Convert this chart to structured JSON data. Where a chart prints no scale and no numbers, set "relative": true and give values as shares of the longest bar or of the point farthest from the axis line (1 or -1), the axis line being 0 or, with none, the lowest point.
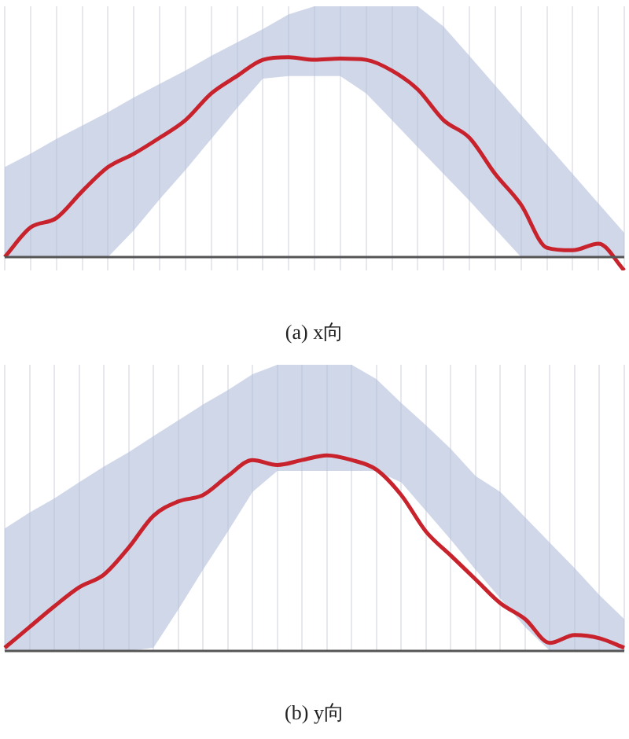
{
  "chart_data": [
    {
      "type": "line",
      "title": "(a) x向",
      "relative": true,
      "grid": "x",
      "legend": false,
      "marker": "none",
      "line_style": "solid",
      "categories": [
        null,
        null,
        null,
        null,
        null,
        null,
        null,
        null,
        null,
        null,
        null,
        null,
        null,
        null,
        null,
        null,
        null,
        null,
        null,
        null,
        null,
        null,
        null,
        null,
        null
      ],
      "series": [
        {
          "color": "#c8232c",
          "values": [
            0,
            0.148,
            0.195,
            0.329,
            0.45,
            0.517,
            0.597,
            0.685,
            0.819,
            0.906,
            0.987,
            1,
            0.987,
            0.993,
            0.987,
            0.933,
            0.839,
            0.685,
            0.597,
            0.416,
            0.262,
            0.047,
            0.034,
            0.067,
            -0.067
          ],
          "lower": [
            0,
            0,
            0,
            0,
            0,
            0.134,
            0.289,
            0.436,
            0.591,
            0.745,
            0.893,
            0.906,
            0.906,
            0.906,
            0.819,
            0.685,
            0.55,
            0.416,
            0.282,
            0.141,
            0,
            0,
            0,
            0,
            0
          ],
          "upper": [
            0.45,
            0.517,
            0.591,
            0.658,
            0.725,
            0.799,
            0.866,
            0.933,
            1.007,
            1.074,
            1.141,
            1.215,
            1.255,
            1.255,
            1.255,
            1.255,
            1.255,
            1.154,
            1.007,
            0.859,
            0.711,
            0.564,
            0.416,
            0.268,
            0.121
          ]
        }
      ]
    },
    {
      "type": "line",
      "title": "(b) y向",
      "relative": true,
      "grid": "x",
      "legend": false,
      "marker": "none",
      "line_style": "solid",
      "categories": [
        null,
        null,
        null,
        null,
        null,
        null,
        null,
        null,
        null,
        null,
        null,
        null,
        null,
        null,
        null,
        null,
        null,
        null,
        null,
        null,
        null,
        null,
        null,
        null,
        null,
        null
      ],
      "series": [
        {
          "color": "#c8232c",
          "values": [
            0.016,
            0.122,
            0.228,
            0.325,
            0.39,
            0.528,
            0.691,
            0.764,
            0.797,
            0.894,
            0.976,
            0.951,
            0.976,
            1,
            0.976,
            0.927,
            0.797,
            0.61,
            0.488,
            0.366,
            0.244,
            0.163,
            0.041,
            0.081,
            0.065,
            0.016
          ],
          "lower": [
            0,
            0,
            0,
            0,
            0,
            0,
            0.016,
            0.211,
            0.415,
            0.61,
            0.813,
            0.92,
            0.92,
            0.92,
            0.92,
            0.92,
            0.862,
            0.715,
            0.569,
            0.415,
            0.268,
            0.122,
            0,
            0,
            0,
            0
          ],
          "upper": [
            0.626,
            0.707,
            0.78,
            0.862,
            0.943,
            1.016,
            1.098,
            1.179,
            1.26,
            1.333,
            1.415,
            1.463,
            1.463,
            1.463,
            1.463,
            1.39,
            1.268,
            1.154,
            1.033,
            0.894,
            0.813,
            0.683,
            0.553,
            0.423,
            0.285,
            0.163
          ]
        }
      ]
    }
  ]
}
